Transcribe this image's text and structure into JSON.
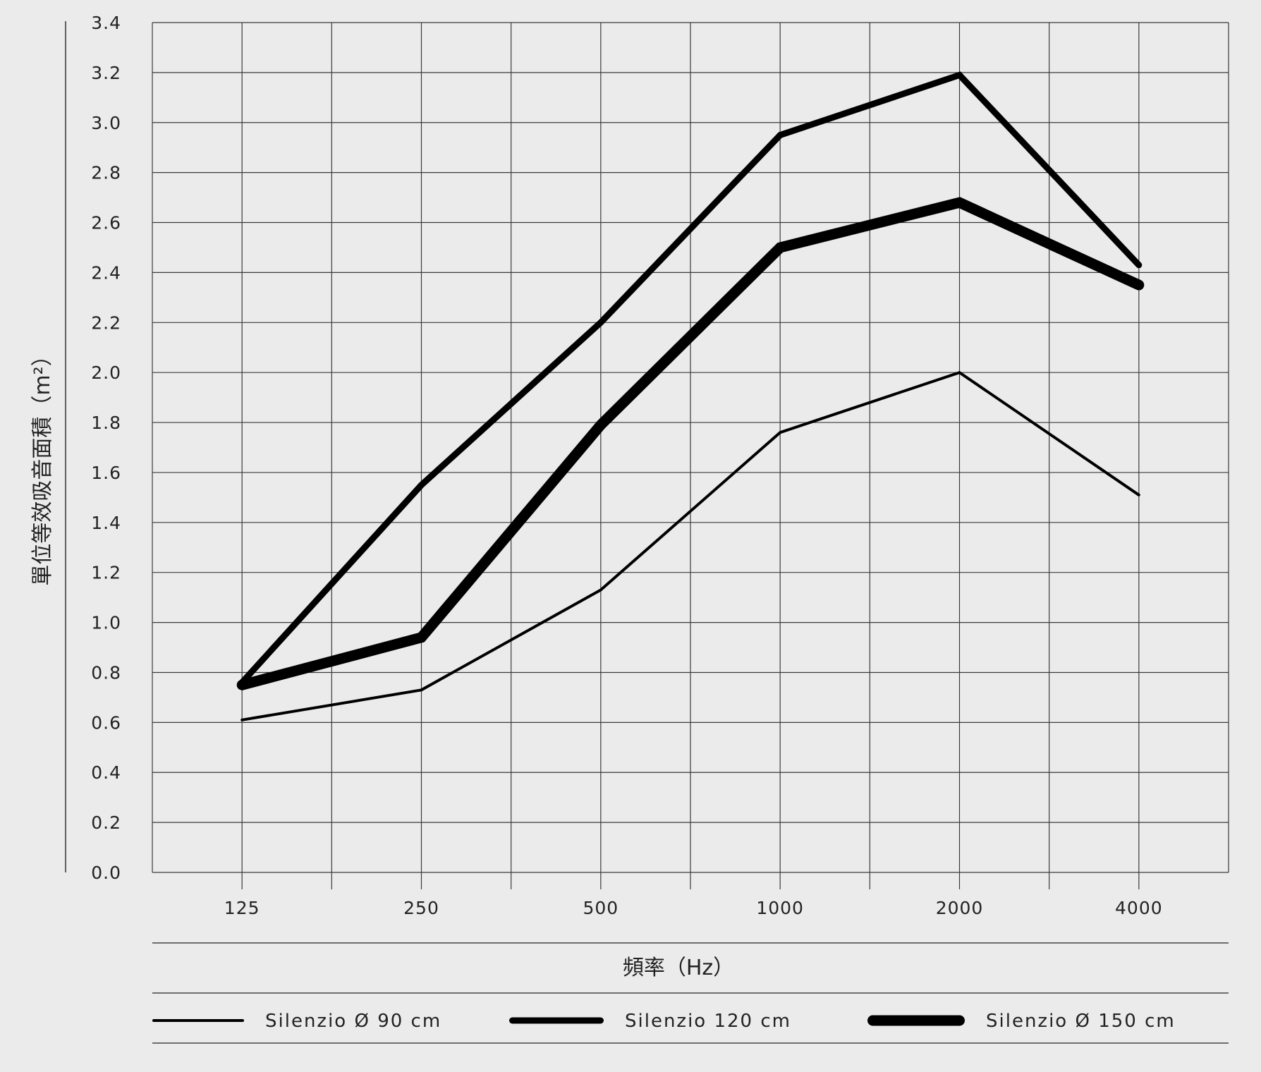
{
  "chart_data": {
    "type": "line",
    "title": "",
    "xlabel": "頻率（Hz）",
    "ylabel": "單位等效吸音面積（m²）",
    "categories": [
      "125",
      "250",
      "500",
      "1000",
      "2000",
      "4000"
    ],
    "yticks": [
      "0.0",
      "0.2",
      "0.4",
      "0.6",
      "0.8",
      "1.0",
      "1.2",
      "1.4",
      "1.6",
      "1.8",
      "2.0",
      "2.2",
      "2.4",
      "2.6",
      "2.8",
      "3.0",
      "3.2",
      "3.4"
    ],
    "ylim": [
      0,
      3.4
    ],
    "grid": true,
    "legend_position": "bottom",
    "series": [
      {
        "name": "Silenzio Ø 90 cm",
        "values": [
          0.61,
          0.73,
          1.13,
          1.76,
          2.0,
          1.51
        ],
        "color": "#000000"
      },
      {
        "name": "Silenzio 120 cm",
        "values": [
          0.76,
          1.55,
          2.2,
          2.95,
          3.19,
          2.43
        ],
        "color": "#000000"
      },
      {
        "name": "Silenzio Ø 150 cm",
        "values": [
          0.75,
          0.94,
          1.79,
          2.5,
          2.68,
          2.35
        ],
        "color": "#000000"
      }
    ]
  }
}
